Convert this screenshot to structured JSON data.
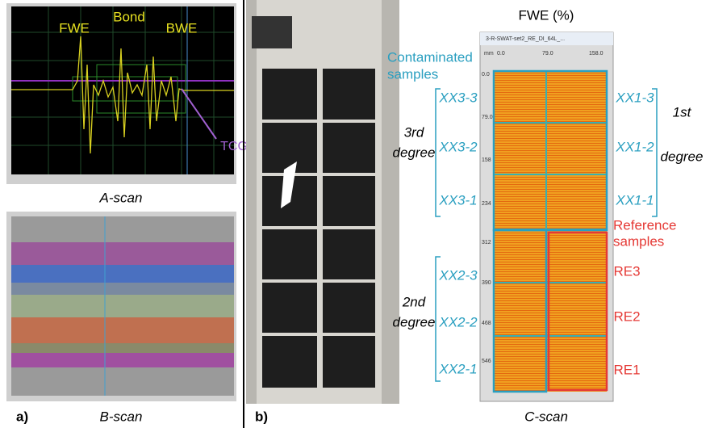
{
  "panel_a": {
    "label": "a)",
    "a_scan": {
      "caption": "A-scan",
      "echoes": [
        "FWE",
        "Bond",
        "BWE"
      ],
      "gate": "TCG"
    },
    "b_scan": {
      "caption": "B-scan"
    }
  },
  "panel_b": {
    "label": "b)",
    "c_scan": {
      "caption": "C-scan",
      "title": "FWE (%)",
      "window_title": "3-R-SWAT-set2_RE_DI_64L_...",
      "x_unit": "mm",
      "x_ticks": [
        "0.0",
        "79.0",
        "158.0"
      ],
      "y_ticks": [
        "0.0",
        "79.0",
        "158",
        "234",
        "312",
        "390",
        "468",
        "546"
      ]
    },
    "contaminated": {
      "lines": [
        "Contaminated",
        "samples"
      ]
    },
    "reference": {
      "lines": [
        "Reference",
        "samples"
      ]
    },
    "third_degree": {
      "lines": [
        "3rd",
        "degree"
      ],
      "samples": [
        "XX3-3",
        "XX3-2",
        "XX3-1"
      ]
    },
    "second_degree": {
      "lines": [
        "2nd",
        "degree"
      ],
      "samples": [
        "XX2-3",
        "XX2-2",
        "XX2-1"
      ]
    },
    "first_degree": {
      "lines": [
        "1st",
        "degree"
      ],
      "samples": [
        "XX1-3",
        "XX1-2",
        "XX1-1"
      ]
    },
    "reference_samples": [
      "RE3",
      "RE2",
      "RE1"
    ]
  }
}
